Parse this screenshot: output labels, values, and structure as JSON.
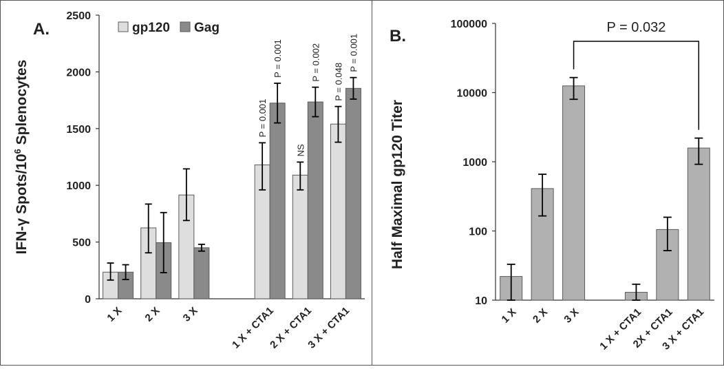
{
  "colors": {
    "gp120": "#dedede",
    "gag": "#8a8a8a",
    "single": "#b1b1b1",
    "stroke": "#5a5a5a",
    "axis": "#333333",
    "text": "#222222",
    "border": "#555555"
  },
  "chart_data": [
    {
      "panel": "A.",
      "type": "bar",
      "ylabel_main": "IFN-γ Spots/10",
      "ylabel_sup": "6",
      "ylabel_tail": " Splenocytes",
      "ylim": [
        0,
        2500
      ],
      "yticks": [
        "0",
        "500",
        "1000",
        "1500",
        "2000",
        "2500"
      ],
      "ytick_values": [
        0,
        500,
        1000,
        1500,
        2000,
        2500
      ],
      "categories": [
        "1 X",
        "2 X",
        "3 X",
        "",
        "1 X + CTA1",
        "2 X + CTA1",
        "3 X + CTA1"
      ],
      "legend": [
        "gp120",
        "Gag"
      ],
      "legend_position": "top-left",
      "series": [
        {
          "name": "gp120",
          "values": [
            235,
            625,
            915,
            null,
            1180,
            1090,
            1540
          ],
          "err_low": [
            165,
            405,
            690,
            null,
            960,
            960,
            1380
          ],
          "err_high": [
            315,
            835,
            1145,
            null,
            1375,
            1205,
            1695
          ],
          "annotations": [
            "",
            "",
            "",
            "",
            "P = 0.001",
            "NS",
            "P = 0.048"
          ]
        },
        {
          "name": "Gag",
          "values": [
            235,
            495,
            450,
            null,
            1725,
            1735,
            1855
          ],
          "err_low": [
            170,
            230,
            420,
            null,
            1550,
            1605,
            1760
          ],
          "err_high": [
            300,
            760,
            480,
            null,
            1900,
            1865,
            1950
          ],
          "annotations": [
            "",
            "",
            "",
            "",
            "P = 0.001",
            "P = 0.002",
            "P = 0.001"
          ]
        }
      ]
    },
    {
      "panel": "B.",
      "type": "bar",
      "yscale": "log",
      "ylabel": "Half Maximal gp120 Titer",
      "ylim": [
        10,
        100000
      ],
      "yticks": [
        "10",
        "100",
        "1000",
        "10000",
        "100000"
      ],
      "ytick_values": [
        10,
        100,
        1000,
        10000,
        100000
      ],
      "categories": [
        "1 X",
        "2 X",
        "3 X",
        "",
        "1 X + CTA1",
        "2X + CTA1",
        "3 X + CTA1"
      ],
      "values": [
        22,
        410,
        12500,
        null,
        13,
        105,
        1580
      ],
      "err_low": [
        10,
        165,
        8000,
        null,
        10,
        52,
        920
      ],
      "err_high": [
        33,
        660,
        16500,
        null,
        17,
        158,
        2200
      ],
      "comparison": {
        "from": 2,
        "to": 6,
        "label": "P = 0.032"
      }
    }
  ]
}
